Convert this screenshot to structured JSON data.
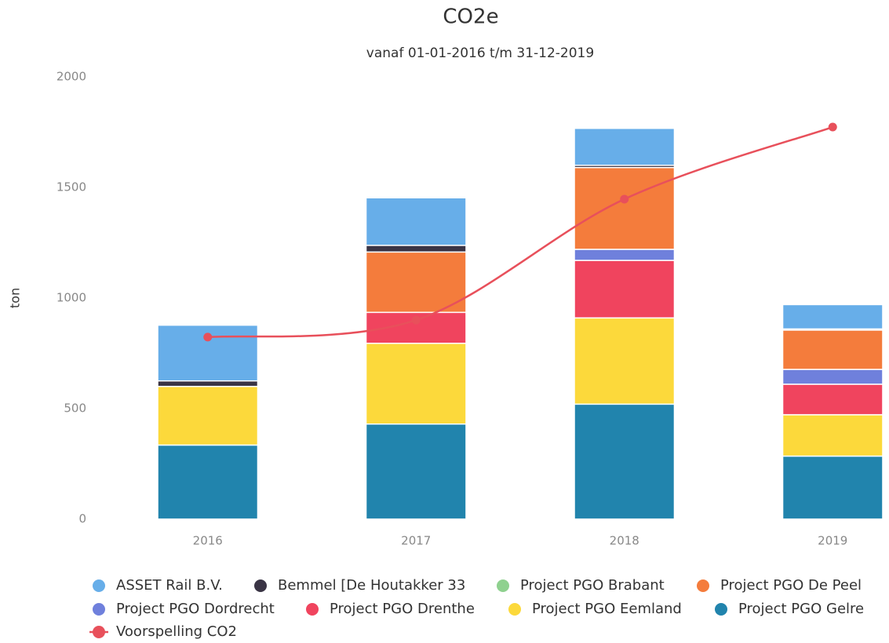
{
  "chart_data": {
    "type": "bar",
    "title": "CO2e",
    "subtitle": "vanaf 01-01-2016 t/m 31-12-2019",
    "y_label": "ton",
    "categories": [
      "2016",
      "2017",
      "2018",
      "2019"
    ],
    "ylim": [
      0,
      2000
    ],
    "yticks": [
      0,
      500,
      1000,
      1500,
      2000
    ],
    "stacked": true,
    "series": [
      {
        "name": "Project PGO Gelre",
        "color": "#2184ad",
        "type": "bar",
        "values": [
          335,
          430,
          520,
          285
        ]
      },
      {
        "name": "Project PGO Eemland",
        "color": "#fcd93b",
        "type": "bar",
        "values": [
          265,
          365,
          390,
          187
        ]
      },
      {
        "name": "Project PGO Drenthe",
        "color": "#f0445e",
        "type": "bar",
        "values": [
          0,
          140,
          260,
          138
        ]
      },
      {
        "name": "Project PGO Dordrecht",
        "color": "#6f80dc",
        "type": "bar",
        "values": [
          0,
          0,
          50,
          67
        ]
      },
      {
        "name": "Project PGO De Peel",
        "color": "#f47c3c",
        "type": "bar",
        "values": [
          0,
          273,
          370,
          178
        ]
      },
      {
        "name": "Project PGO Brabant",
        "color": "#8fd18f",
        "type": "bar",
        "values": [
          0,
          0,
          0,
          0
        ]
      },
      {
        "name": "Bemmel [De Houtakker 33",
        "color": "#3a3445",
        "type": "bar",
        "values": [
          25,
          30,
          10,
          5
        ]
      },
      {
        "name": "ASSET Rail B.V.",
        "color": "#67aee9",
        "type": "bar",
        "values": [
          252,
          215,
          167,
          110
        ]
      },
      {
        "name": "Voorspelling CO2",
        "color": "#e8505b",
        "type": "line",
        "values": [
          823,
          900,
          1447,
          1773
        ]
      }
    ]
  }
}
